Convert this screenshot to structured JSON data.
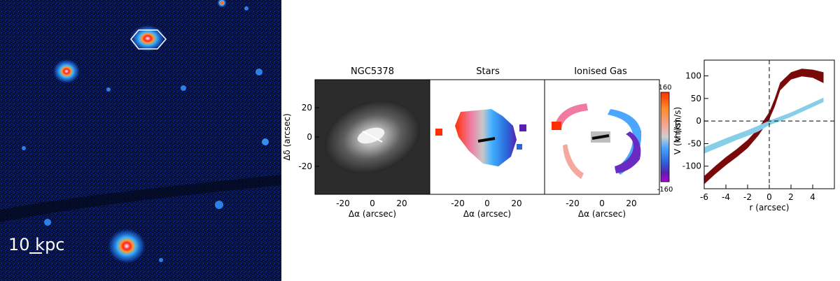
{
  "deep_image": {
    "scale_bar_label": "10 kpc"
  },
  "kinematic_maps": {
    "titles": [
      "NGC5378",
      "Stars",
      "Ionised Gas"
    ],
    "ylabel": "Δδ (arcsec)",
    "xlabel": "Δα (arcsec)",
    "x_ticks": [
      -20,
      0,
      20
    ],
    "y_ticks": [
      20,
      0,
      -20
    ],
    "colorbar": {
      "label": "V (km/s)",
      "max_label": "160",
      "min_label": "-160",
      "colors": [
        "#ff3000",
        "#ff8a2a",
        "#f4a89e",
        "#cfcfcf",
        "#4aa6ff",
        "#2b64d8",
        "#5a1fb0",
        "#b000d8"
      ]
    }
  },
  "chart_data": {
    "type": "line",
    "xlabel": "r (arcsec)",
    "ylabel": "V (km/s)",
    "xlim": [
      -6,
      6
    ],
    "ylim": [
      -150,
      135
    ],
    "x_ticks": [
      -6,
      -4,
      -2,
      0,
      2,
      4
    ],
    "y_ticks": [
      -100,
      -50,
      0,
      50,
      100
    ],
    "reference_lines": {
      "x": 0,
      "y": 0,
      "style": "dashed"
    },
    "series": [
      {
        "color": "#7a0a0a",
        "style": "band",
        "x": [
          -6,
          -5,
          -4,
          -3,
          -2,
          -1,
          -0.5,
          0,
          0.5,
          1,
          2,
          3,
          4,
          5
        ],
        "upper": [
          -122,
          -100,
          -80,
          -62,
          -42,
          -16,
          2,
          20,
          50,
          85,
          108,
          116,
          114,
          108
        ],
        "lower": [
          -140,
          -118,
          -98,
          -80,
          -60,
          -32,
          -14,
          4,
          32,
          68,
          92,
          99,
          96,
          84
        ]
      },
      {
        "color": "#87cfe8",
        "style": "band",
        "x": [
          -6,
          -5,
          -4,
          -3,
          -2,
          -1,
          0,
          1,
          2,
          3,
          4,
          5
        ],
        "upper": [
          -58,
          -48,
          -38,
          -29,
          -20,
          -10,
          1,
          10,
          19,
          30,
          41,
          52
        ],
        "lower": [
          -72,
          -62,
          -52,
          -42,
          -33,
          -23,
          -9,
          0,
          9,
          20,
          31,
          42
        ]
      }
    ]
  }
}
